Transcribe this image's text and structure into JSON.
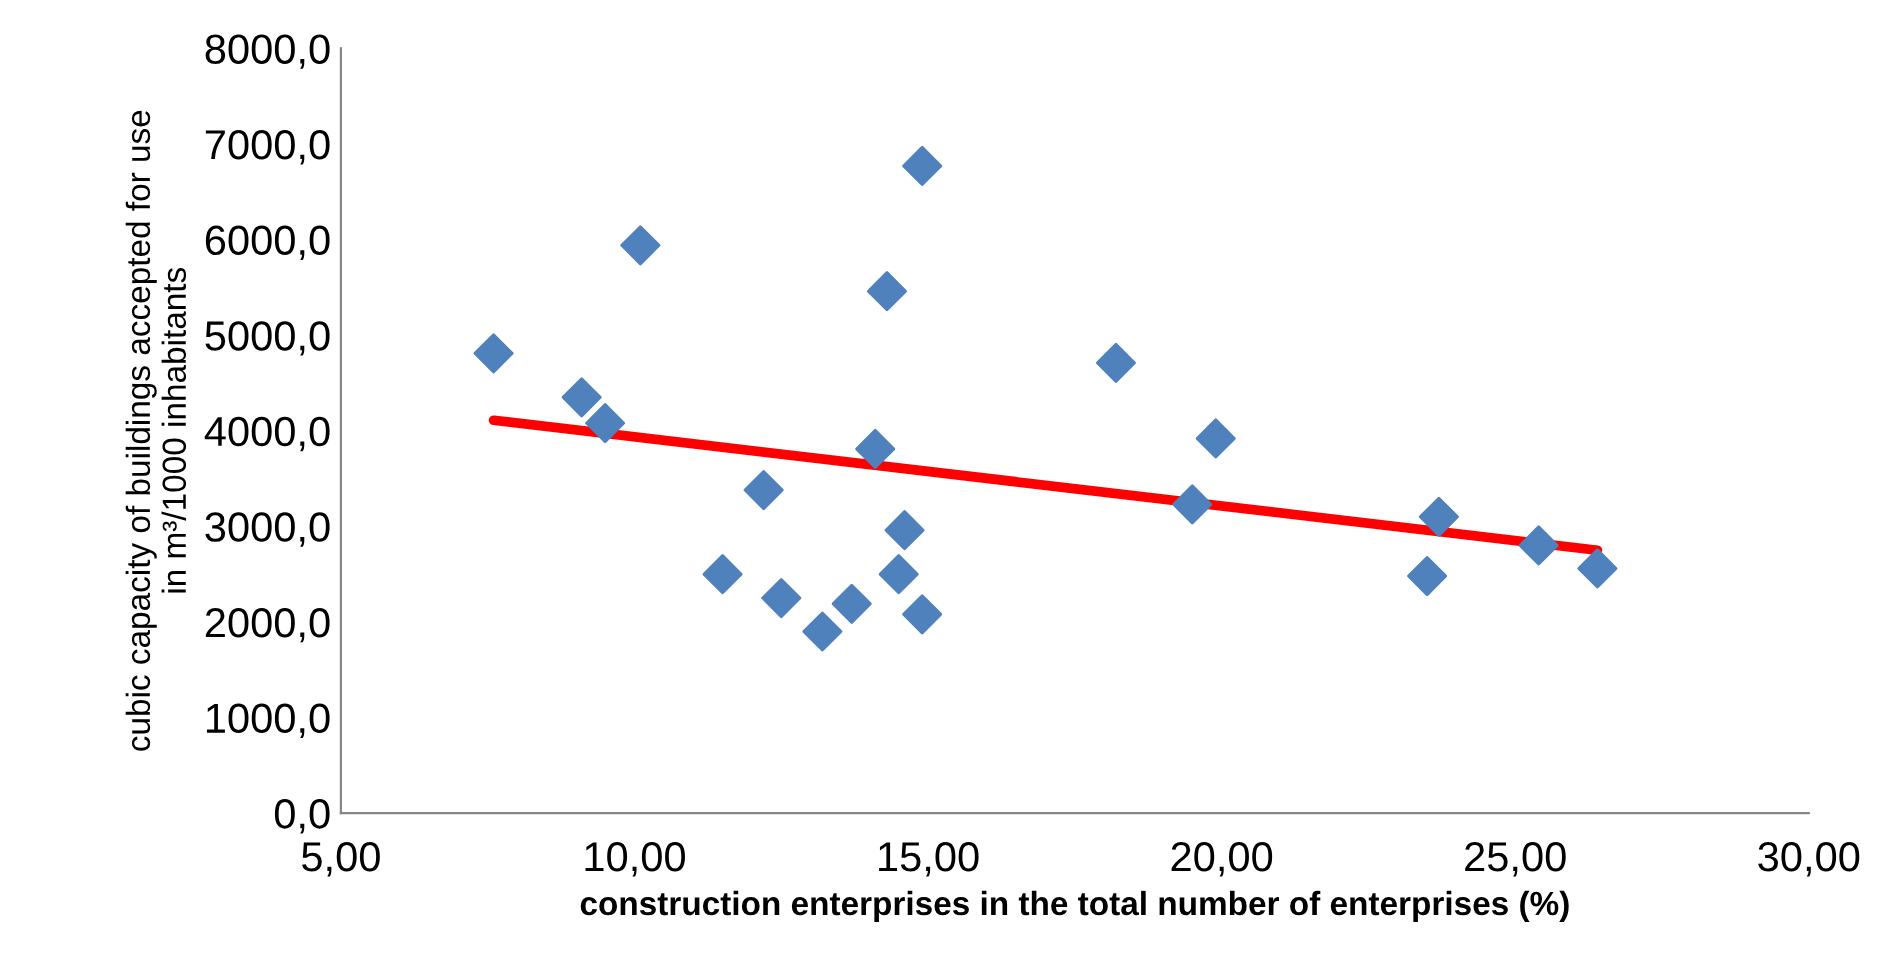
{
  "chart_data": {
    "type": "scatter",
    "xlabel": "construction enterprises in the total number of enterprises (%)",
    "ylabel": "cubic capacity of buildings accepted for use\nin m³/1000 inhabitants",
    "xlim": [
      5,
      30
    ],
    "ylim": [
      0,
      8000
    ],
    "xticks": [
      {
        "value": 5,
        "label": "5,00"
      },
      {
        "value": 10,
        "label": "10,00"
      },
      {
        "value": 15,
        "label": "15,00"
      },
      {
        "value": 20,
        "label": "20,00"
      },
      {
        "value": 25,
        "label": "25,00"
      },
      {
        "value": 30,
        "label": "30,00"
      }
    ],
    "yticks": [
      {
        "value": 0,
        "label": "0,0"
      },
      {
        "value": 1000,
        "label": "1000,0"
      },
      {
        "value": 2000,
        "label": "2000,0"
      },
      {
        "value": 3000,
        "label": "3000,0"
      },
      {
        "value": 4000,
        "label": "4000,0"
      },
      {
        "value": 5000,
        "label": "5000,0"
      },
      {
        "value": 6000,
        "label": "6000,0"
      },
      {
        "value": 7000,
        "label": "7000,0"
      },
      {
        "value": 8000,
        "label": "8000,0"
      }
    ],
    "grid": false,
    "legend": false,
    "series": [
      {
        "color": "#4f81bd",
        "marker": "diamond",
        "x": [
          7.6,
          9.1,
          9.5,
          10.1,
          11.5,
          12.2,
          12.5,
          13.2,
          13.7,
          14.1,
          14.3,
          14.5,
          14.6,
          14.9,
          14.9,
          18.2,
          19.9,
          19.5,
          23.7,
          23.5,
          25.4,
          26.4
        ],
        "values": [
          4810,
          4350,
          4080,
          5940,
          2500,
          3380,
          2250,
          1900,
          2190,
          3810,
          5460,
          2500,
          2960,
          2080,
          6770,
          4710,
          3920,
          3230,
          3100,
          2480,
          2800,
          2560
        ]
      },
      {
        "type": "line",
        "color": "#ff0000",
        "line_style": "solid",
        "x": [
          7.6,
          26.4
        ],
        "values": [
          4110,
          2750
        ]
      }
    ]
  }
}
